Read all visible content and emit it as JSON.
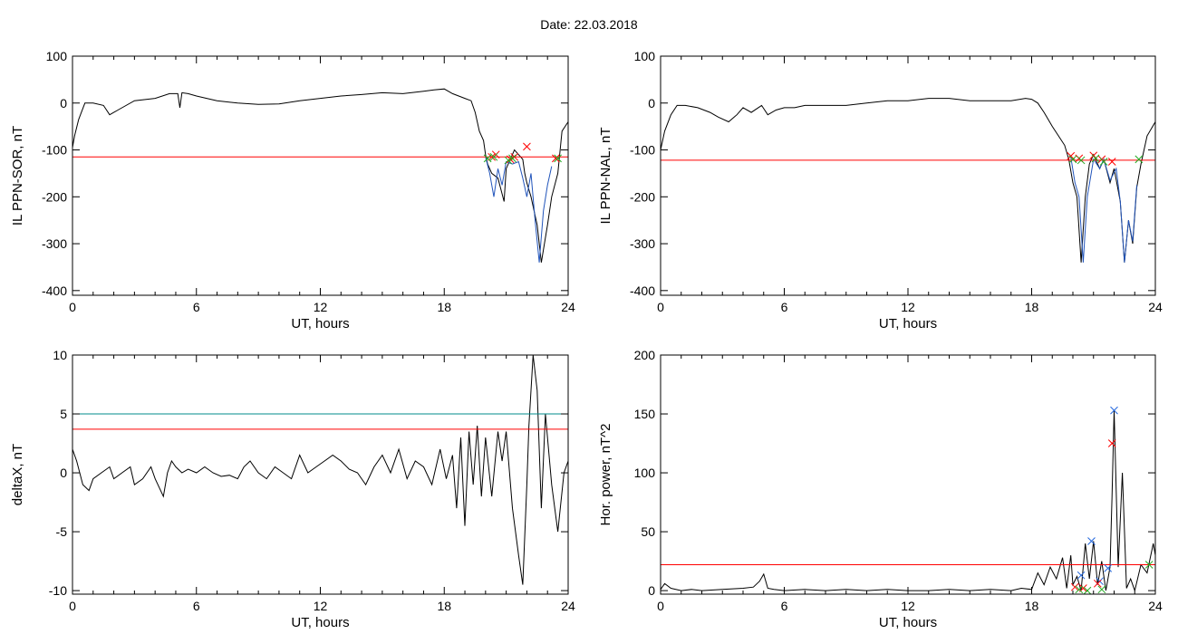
{
  "date_title": "Date:  22.03.2018",
  "chart_data": [
    {
      "type": "line",
      "ylabel": "IL PPN-SOR, nT",
      "xlabel": "UT, hours",
      "xlim": [
        0,
        24
      ],
      "ylim": [
        -410,
        100
      ],
      "xticks": [
        0,
        6,
        12,
        18,
        24
      ],
      "yticks": [
        100,
        0,
        -100,
        -200,
        -300,
        -400
      ],
      "series": [
        {
          "color": "#000000",
          "x": [
            0,
            0.1,
            0.3,
            0.6,
            1.0,
            1.5,
            1.8,
            2.2,
            3.0,
            4.0,
            4.7,
            5.1,
            5.2,
            5.3,
            5.6,
            6.0,
            6.5,
            7.0,
            8.0,
            9.0,
            10.0,
            11.0,
            12.0,
            13.0,
            14.0,
            15.0,
            16.0,
            17.0,
            17.5,
            18.0,
            18.4,
            18.7,
            19.0,
            19.3,
            19.5,
            19.7,
            19.9,
            20.0,
            20.1,
            20.3,
            20.6,
            20.9,
            21.0,
            21.2,
            21.4,
            21.6,
            21.8,
            21.9,
            22.0,
            22.2,
            22.5,
            22.7,
            23.0,
            23.2,
            23.5,
            23.7,
            24.0
          ],
          "y": [
            -95,
            -70,
            -35,
            0,
            0,
            -5,
            -25,
            -15,
            5,
            10,
            20,
            20,
            -10,
            22,
            20,
            15,
            10,
            5,
            0,
            -3,
            -2,
            5,
            10,
            15,
            18,
            22,
            20,
            25,
            28,
            30,
            20,
            15,
            10,
            5,
            -20,
            -60,
            -80,
            -110,
            -130,
            -150,
            -160,
            -210,
            -140,
            -120,
            -100,
            -110,
            -120,
            -150,
            -170,
            -200,
            -260,
            -340,
            -260,
            -200,
            -150,
            -60,
            -40
          ]
        },
        {
          "color": "#2255bb",
          "x": [
            20.0,
            20.2,
            20.4,
            20.6,
            20.8,
            21.0,
            21.3,
            21.6,
            21.8,
            22.0,
            22.2,
            22.4,
            22.6,
            22.8,
            23.0,
            23.2
          ],
          "y": [
            -115,
            -150,
            -200,
            -140,
            -175,
            -125,
            -130,
            -125,
            -160,
            -200,
            -150,
            -250,
            -340,
            -230,
            -175,
            -135
          ]
        },
        {
          "color": "#ff0000",
          "x": [
            0,
            24
          ],
          "y": [
            -115,
            -115
          ]
        }
      ],
      "markers": [
        {
          "symbol": "x",
          "color": "#ff0000",
          "x": [
            20.3,
            20.5,
            21.2,
            21.4,
            22.0,
            23.4
          ],
          "y": [
            -115,
            -110,
            -120,
            -115,
            -93,
            -118
          ]
        },
        {
          "symbol": "x",
          "color": "#22aa22",
          "x": [
            20.1,
            20.4,
            21.1,
            21.3,
            23.5
          ],
          "y": [
            -118,
            -115,
            -122,
            -118,
            -118
          ]
        }
      ]
    },
    {
      "type": "line",
      "ylabel": "IL PPN-NAL, nT",
      "xlabel": "UT, hours",
      "xlim": [
        0,
        24
      ],
      "ylim": [
        -410,
        100
      ],
      "xticks": [
        0,
        6,
        12,
        18,
        24
      ],
      "yticks": [
        100,
        0,
        -100,
        -200,
        -300,
        -400
      ],
      "series": [
        {
          "color": "#000000",
          "x": [
            0,
            0.2,
            0.5,
            0.8,
            1.2,
            1.8,
            2.4,
            2.8,
            3.3,
            3.7,
            4.0,
            4.4,
            4.9,
            5.2,
            5.6,
            6.0,
            6.5,
            7.0,
            8.0,
            9.0,
            10.0,
            11.0,
            12.0,
            13.0,
            14.0,
            15.0,
            16.0,
            17.0,
            17.7,
            18.0,
            18.3,
            18.6,
            19.0,
            19.3,
            19.6,
            19.8,
            20.0,
            20.2,
            20.4,
            20.6,
            20.8,
            21.0,
            21.3,
            21.5,
            21.8,
            22.0,
            22.3,
            22.5,
            22.7,
            22.9,
            23.1,
            23.3,
            23.6,
            24.0
          ],
          "y": [
            -100,
            -60,
            -25,
            -5,
            -5,
            -10,
            -20,
            -30,
            -40,
            -25,
            -10,
            -20,
            -5,
            -25,
            -15,
            -10,
            -10,
            -5,
            -5,
            -5,
            0,
            5,
            5,
            10,
            10,
            5,
            5,
            5,
            10,
            8,
            0,
            -20,
            -50,
            -70,
            -90,
            -120,
            -170,
            -200,
            -340,
            -200,
            -130,
            -110,
            -140,
            -120,
            -170,
            -140,
            -210,
            -340,
            -250,
            -300,
            -180,
            -130,
            -70,
            -40
          ]
        },
        {
          "color": "#2255bb",
          "x": [
            19.9,
            20.1,
            20.3,
            20.5,
            20.7,
            21.0,
            21.3,
            21.5,
            21.8,
            22.1,
            22.3,
            22.5,
            22.7,
            22.9,
            23.1
          ],
          "y": [
            -115,
            -170,
            -200,
            -340,
            -200,
            -120,
            -140,
            -120,
            -165,
            -140,
            -210,
            -340,
            -250,
            -295,
            -175
          ]
        },
        {
          "color": "#ff0000",
          "x": [
            0,
            24
          ],
          "y": [
            -122,
            -122
          ]
        }
      ],
      "markers": [
        {
          "symbol": "x",
          "color": "#ff0000",
          "x": [
            19.9,
            20.3,
            21.0,
            21.4,
            21.9
          ],
          "y": [
            -113,
            -118,
            -112,
            -120,
            -125
          ]
        },
        {
          "symbol": "x",
          "color": "#22aa22",
          "x": [
            20.0,
            20.4,
            21.1,
            21.5,
            23.2
          ],
          "y": [
            -120,
            -122,
            -118,
            -125,
            -120
          ]
        }
      ]
    },
    {
      "type": "line",
      "ylabel": "deltaX, nT",
      "xlabel": "UT, hours",
      "xlim": [
        0,
        24
      ],
      "ylim": [
        -10.3,
        10
      ],
      "xticks": [
        0,
        6,
        12,
        18,
        24
      ],
      "yticks": [
        10,
        5,
        0,
        -5,
        -10
      ],
      "series": [
        {
          "color": "#000000",
          "x": [
            0,
            0.2,
            0.5,
            0.8,
            1.0,
            1.4,
            1.8,
            2.0,
            2.4,
            2.8,
            3.0,
            3.4,
            3.8,
            4.0,
            4.4,
            4.6,
            4.8,
            5.0,
            5.3,
            5.6,
            6.0,
            6.4,
            6.8,
            7.2,
            7.6,
            8.0,
            8.3,
            8.6,
            9.0,
            9.4,
            9.8,
            10.2,
            10.6,
            11.0,
            11.4,
            11.8,
            12.2,
            12.6,
            13.0,
            13.4,
            13.8,
            14.2,
            14.6,
            15.0,
            15.4,
            15.8,
            16.2,
            16.6,
            17.0,
            17.4,
            17.8,
            18.1,
            18.4,
            18.6,
            18.8,
            19.0,
            19.2,
            19.4,
            19.6,
            19.8,
            20.0,
            20.3,
            20.6,
            20.8,
            21.0,
            21.3,
            21.6,
            21.8,
            22.0,
            22.1,
            22.3,
            22.5,
            22.7,
            22.9,
            23.2,
            23.5,
            23.8,
            24.0
          ],
          "y": [
            2,
            1,
            -1,
            -1.5,
            -0.5,
            0,
            0.5,
            -0.5,
            0,
            0.5,
            -1,
            -0.5,
            0.5,
            -0.5,
            -2,
            0,
            1,
            0.5,
            0,
            0.3,
            0,
            0.5,
            0,
            -0.3,
            -0.2,
            -0.5,
            0.5,
            1,
            0,
            -0.5,
            0.5,
            0,
            -0.5,
            1.5,
            0,
            0.5,
            1,
            1.5,
            1,
            0.3,
            0,
            -1,
            0.5,
            1.5,
            0,
            2,
            -0.5,
            1,
            0.5,
            -1,
            2,
            -0.5,
            1.5,
            -3,
            3,
            -4.5,
            3.5,
            -1,
            4,
            -2,
            3,
            -2,
            3.5,
            1,
            3.5,
            -3,
            -7,
            -9.5,
            -1,
            4,
            10,
            7,
            -3,
            5,
            -1,
            -5,
            0,
            1
          ]
        },
        {
          "color": "#008b8b",
          "x": [
            0,
            24
          ],
          "y": [
            5,
            5
          ]
        },
        {
          "color": "#ff0000",
          "x": [
            0,
            24
          ],
          "y": [
            3.7,
            3.7
          ]
        }
      ]
    },
    {
      "type": "line",
      "ylabel": "Hor. power, nT^2",
      "xlabel": "UT, hours",
      "xlim": [
        0,
        24
      ],
      "ylim": [
        -3,
        200
      ],
      "xticks": [
        0,
        6,
        12,
        18,
        24
      ],
      "yticks": [
        200,
        150,
        100,
        50,
        0
      ],
      "series": [
        {
          "color": "#000000",
          "x": [
            0,
            0.2,
            0.5,
            1.0,
            1.5,
            2.0,
            3.0,
            4.0,
            4.5,
            4.8,
            5.0,
            5.2,
            5.5,
            6.0,
            7.0,
            8.0,
            9.0,
            10.0,
            11.0,
            12.0,
            13.0,
            14.0,
            15.0,
            16.0,
            17.0,
            17.5,
            18.0,
            18.3,
            18.6,
            18.9,
            19.2,
            19.5,
            19.7,
            19.9,
            20.0,
            20.2,
            20.4,
            20.6,
            20.8,
            21.0,
            21.2,
            21.4,
            21.6,
            21.8,
            21.9,
            22.0,
            22.2,
            22.4,
            22.6,
            22.8,
            23.0,
            23.3,
            23.6,
            23.9,
            24.0
          ],
          "y": [
            1,
            6,
            2,
            0,
            1,
            0,
            1,
            2,
            3,
            8,
            14,
            2,
            1,
            0,
            1,
            0,
            1,
            0,
            1,
            0,
            0,
            1,
            0,
            1,
            0,
            2,
            1,
            15,
            5,
            20,
            10,
            28,
            2,
            30,
            5,
            12,
            0,
            40,
            10,
            42,
            5,
            25,
            0,
            20,
            80,
            153,
            20,
            100,
            2,
            10,
            0,
            22,
            15,
            40,
            30
          ]
        },
        {
          "color": "#ff0000",
          "x": [
            0,
            24
          ],
          "y": [
            22,
            22
          ]
        }
      ],
      "markers": [
        {
          "symbol": "x",
          "color": "#2266dd",
          "x": [
            20.4,
            20.9,
            21.3,
            21.7,
            22.0
          ],
          "y": [
            13,
            42,
            8,
            19,
            153
          ]
        },
        {
          "symbol": "x",
          "color": "#ff0000",
          "x": [
            20.1,
            20.5,
            21.2,
            21.9
          ],
          "y": [
            3,
            2,
            6,
            125
          ]
        },
        {
          "symbol": "x",
          "color": "#22aa22",
          "x": [
            20.3,
            20.7,
            21.4,
            23.7
          ],
          "y": [
            1,
            0,
            1,
            22
          ]
        }
      ]
    }
  ]
}
